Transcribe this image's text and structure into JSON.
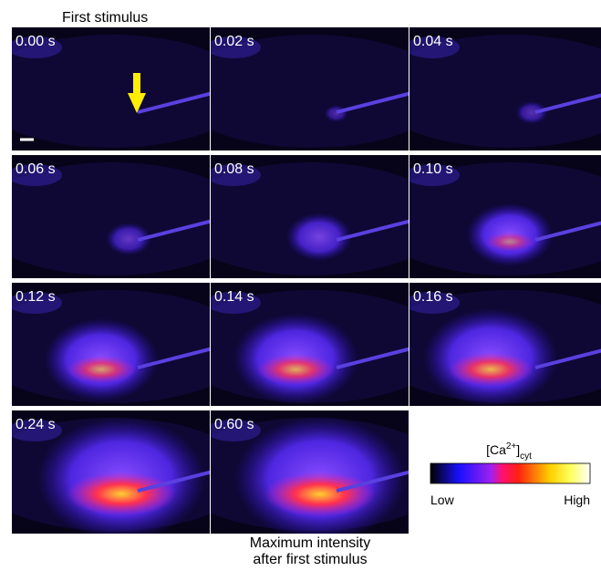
{
  "header": "First stimulus",
  "panels": [
    {
      "time": "0.00 s"
    },
    {
      "time": "0.02 s"
    },
    {
      "time": "0.04 s"
    },
    {
      "time": "0.06 s"
    },
    {
      "time": "0.08 s"
    },
    {
      "time": "0.10 s"
    },
    {
      "time": "0.12 s"
    },
    {
      "time": "0.14 s"
    },
    {
      "time": "0.16 s"
    },
    {
      "time": "0.24 s"
    },
    {
      "time": "0.60 s"
    }
  ],
  "colorbar": {
    "label": {
      "base": "[Ca",
      "sup": "2+",
      "close": "]",
      "sub": "cyt"
    },
    "low": "Low",
    "high": "High"
  },
  "caption": [
    "Maximum intensity",
    "after first stimulus"
  ]
}
